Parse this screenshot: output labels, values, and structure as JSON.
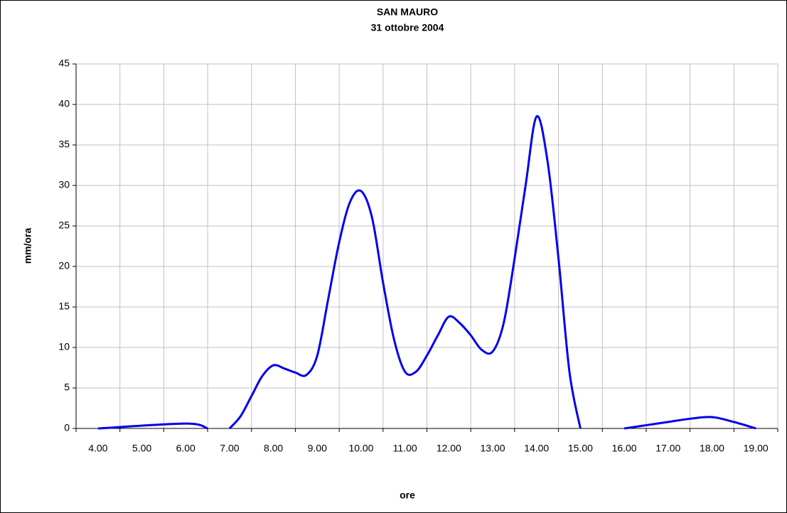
{
  "chart_data": {
    "type": "line",
    "title": "SAN MAURO",
    "subtitle": "31 ottobre 2004",
    "x_label": "ore",
    "y_label": "mm/ora",
    "x": [
      4,
      6,
      6.5,
      6.75,
      7,
      7.25,
      7.5,
      7.75,
      8,
      8.25,
      8.5,
      8.75,
      9,
      9.25,
      9.5,
      9.75,
      10,
      10.25,
      10.5,
      10.75,
      11,
      11.25,
      11.5,
      11.75,
      12,
      12.25,
      12.5,
      12.75,
      13,
      13.25,
      13.5,
      13.75,
      14,
      14.25,
      14.5,
      14.75,
      15,
      15.5,
      16,
      16.5,
      17,
      17.5,
      18,
      18.5,
      19
    ],
    "series": [
      {
        "name": "mm/ora",
        "color": "#0000ee",
        "values": [
          0,
          0.6,
          0,
          null,
          0,
          1.5,
          4,
          6.5,
          7.8,
          7.4,
          6.9,
          6.6,
          9,
          16,
          23,
          28,
          29.3,
          26,
          18,
          11,
          7,
          7,
          9,
          11.5,
          13.8,
          13,
          11.5,
          9.7,
          9.5,
          13,
          21,
          30,
          38.5,
          33,
          21,
          7,
          0,
          null,
          0,
          0.4,
          0.8,
          1.2,
          1.4,
          0.8,
          0
        ]
      }
    ],
    "xlim": [
      3.5,
      19.5
    ],
    "xticks": [
      {
        "value": 4,
        "label": "4.00"
      },
      {
        "value": 5,
        "label": "5.00"
      },
      {
        "value": 6,
        "label": "6.00"
      },
      {
        "value": 7,
        "label": "7.00"
      },
      {
        "value": 8,
        "label": "8.00"
      },
      {
        "value": 9,
        "label": "9.00"
      },
      {
        "value": 10,
        "label": "10.00"
      },
      {
        "value": 11,
        "label": "11.00"
      },
      {
        "value": 12,
        "label": "12.00"
      },
      {
        "value": 13,
        "label": "13.00"
      },
      {
        "value": 14,
        "label": "14.00"
      },
      {
        "value": 15,
        "label": "15.00"
      },
      {
        "value": 16,
        "label": "16.00"
      },
      {
        "value": 17,
        "label": "17.00"
      },
      {
        "value": 18,
        "label": "18.00"
      },
      {
        "value": 19,
        "label": "19.00"
      }
    ],
    "ylim": [
      0,
      45
    ],
    "yticks": [
      0,
      5,
      10,
      15,
      20,
      25,
      30,
      35,
      40,
      45
    ],
    "grid": true
  }
}
